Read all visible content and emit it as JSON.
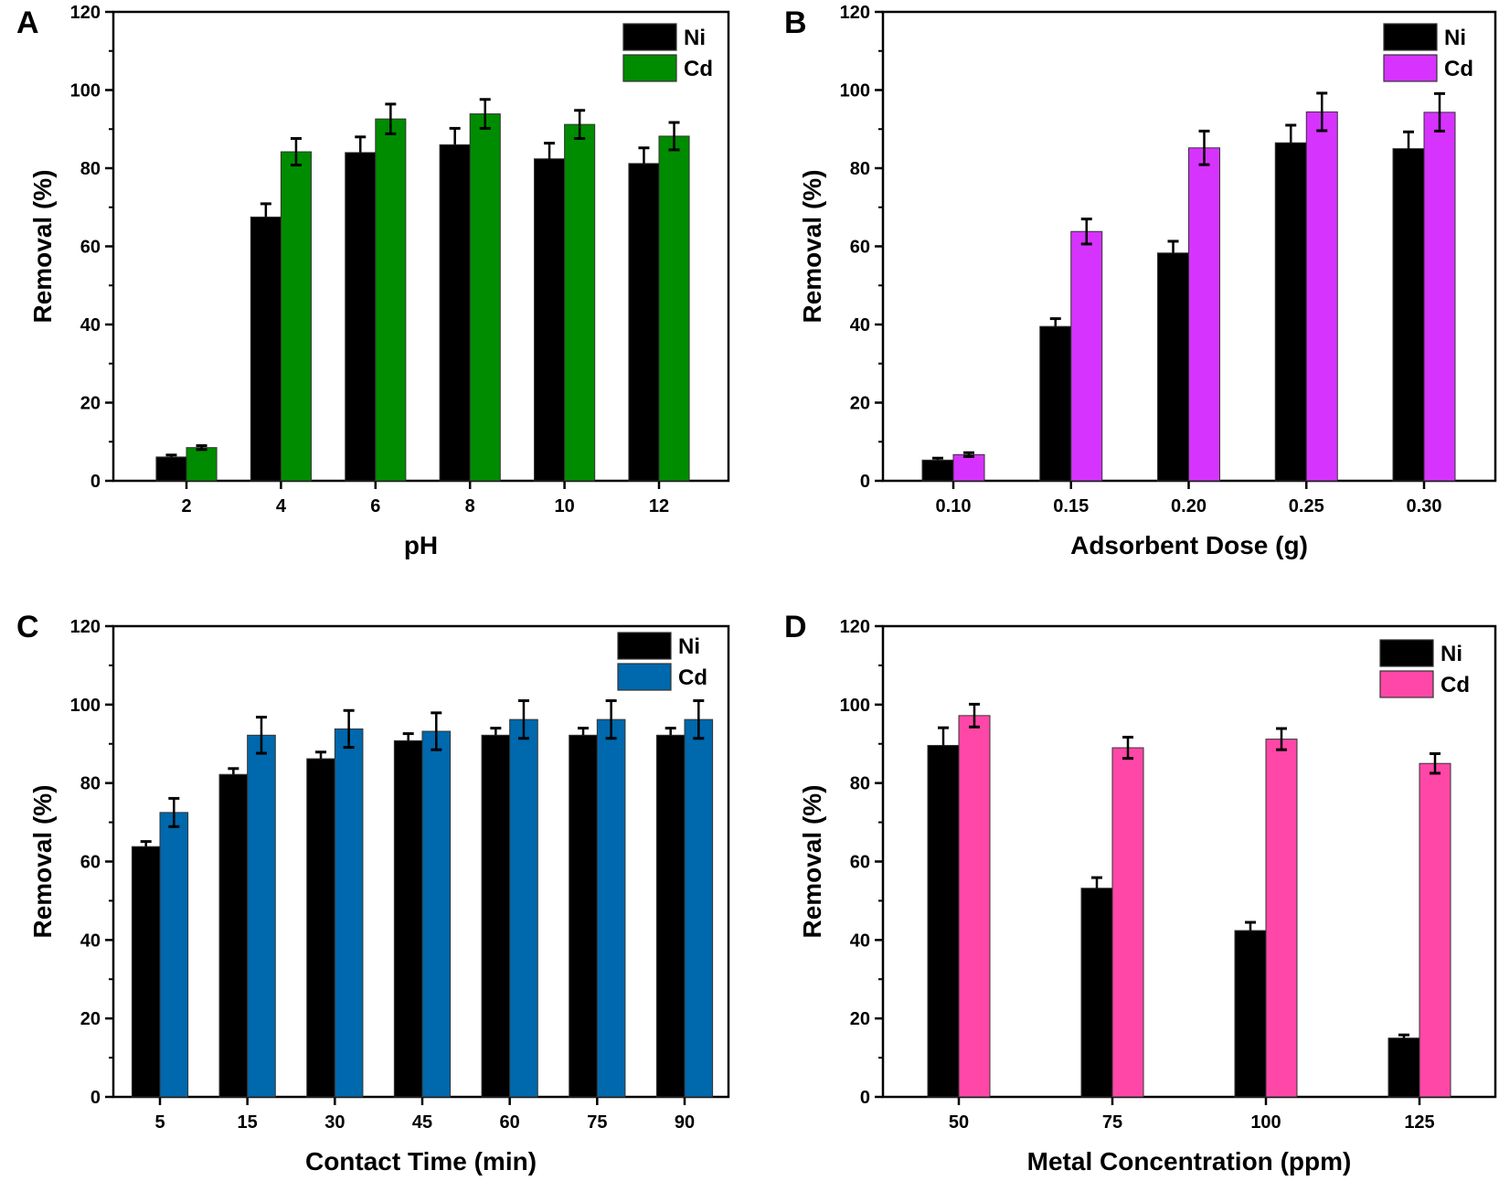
{
  "figure": {
    "series_names": [
      "Ni",
      "Cd"
    ],
    "y_axis_label": "Removal (%)"
  },
  "chart_data": [
    {
      "panel": "A",
      "type": "bar",
      "title": "",
      "xlabel": "pH",
      "ylabel": "Removal (%)",
      "ylim": [
        0,
        120
      ],
      "yticks": [
        0,
        20,
        40,
        60,
        80,
        100,
        120
      ],
      "categories": [
        "2",
        "4",
        "6",
        "8",
        "10",
        "12"
      ],
      "legend": "top-right",
      "grid": false,
      "series": [
        {
          "name": "Ni",
          "color": "#000000",
          "values": [
            6.1,
            67.5,
            84.0,
            86.0,
            82.4,
            81.2
          ],
          "errors": [
            0.5,
            3.4,
            4.0,
            4.2,
            4.0,
            4.0
          ]
        },
        {
          "name": "Cd",
          "color": "#008c00",
          "values": [
            8.5,
            84.2,
            92.6,
            93.9,
            91.2,
            88.2
          ],
          "errors": [
            0.5,
            3.4,
            3.8,
            3.7,
            3.6,
            3.5
          ]
        }
      ]
    },
    {
      "panel": "B",
      "type": "bar",
      "title": "",
      "xlabel": "Adsorbent Dose (g)",
      "ylabel": "Removal (%)",
      "ylim": [
        0,
        120
      ],
      "yticks": [
        0,
        20,
        40,
        60,
        80,
        100,
        120
      ],
      "categories": [
        "0.10",
        "0.15",
        "0.20",
        "0.25",
        "0.30"
      ],
      "legend": "top-right",
      "grid": false,
      "series": [
        {
          "name": "Ni",
          "color": "#000000",
          "values": [
            5.3,
            39.5,
            58.3,
            86.5,
            85.0
          ],
          "errors": [
            0.5,
            2.0,
            3.0,
            4.5,
            4.3
          ]
        },
        {
          "name": "Cd",
          "color": "#d633ff",
          "values": [
            6.7,
            63.8,
            85.2,
            94.4,
            94.3
          ],
          "errors": [
            0.5,
            3.2,
            4.3,
            4.8,
            4.8
          ]
        }
      ]
    },
    {
      "panel": "C",
      "type": "bar",
      "title": "",
      "xlabel": "Contact Time (min)",
      "ylabel": "Removal (%)",
      "ylim": [
        0,
        120
      ],
      "yticks": [
        0,
        20,
        40,
        60,
        80,
        100,
        120
      ],
      "categories": [
        "5",
        "15",
        "30",
        "45",
        "60",
        "75",
        "90"
      ],
      "legend": "top-right",
      "grid": false,
      "series": [
        {
          "name": "Ni",
          "color": "#000000",
          "values": [
            63.8,
            82.2,
            86.2,
            90.8,
            92.2,
            92.2,
            92.2
          ],
          "errors": [
            1.3,
            1.5,
            1.7,
            1.8,
            1.8,
            1.8,
            1.8
          ]
        },
        {
          "name": "Cd",
          "color": "#0068ac",
          "values": [
            72.5,
            92.2,
            93.8,
            93.2,
            96.2,
            96.2,
            96.2
          ],
          "errors": [
            3.6,
            4.6,
            4.7,
            4.7,
            4.8,
            4.8,
            4.8
          ]
        }
      ]
    },
    {
      "panel": "D",
      "type": "bar",
      "title": "",
      "xlabel": "Metal Concentration (ppm)",
      "ylabel": "Removal (%)",
      "ylim": [
        0,
        120
      ],
      "yticks": [
        0,
        20,
        40,
        60,
        80,
        100,
        120
      ],
      "categories": [
        "50",
        "75",
        "100",
        "125"
      ],
      "legend": "top-right",
      "grid": false,
      "series": [
        {
          "name": "Ni",
          "color": "#000000",
          "values": [
            89.6,
            53.2,
            42.4,
            15.0
          ],
          "errors": [
            4.5,
            2.7,
            2.1,
            0.8
          ]
        },
        {
          "name": "Cd",
          "color": "#ff47a8",
          "values": [
            97.2,
            89.0,
            91.2,
            85.0
          ],
          "errors": [
            2.9,
            2.7,
            2.7,
            2.5
          ]
        }
      ]
    }
  ]
}
